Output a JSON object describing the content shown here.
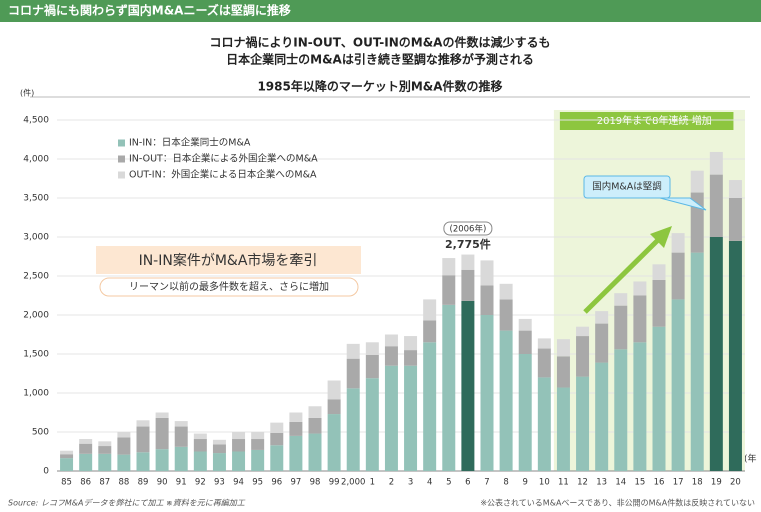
{
  "chart_data": {
    "type": "stacked_bar",
    "header": "コロナ禍にも関わらず国内M&Aニーズは堅調に推移",
    "subtitle": [
      "コロナ禍によりIN-OUT、OUT-INのM&Aの件数は減少するも",
      "日本企業同士のM&Aは引き続き堅調な推移が予測される"
    ],
    "title": "1985年以降のマーケット別M&A件数の推移",
    "y_label": "(件)",
    "x_label": "(年",
    "categories": [
      "85",
      "86",
      "87",
      "88",
      "89",
      "90",
      "91",
      "92",
      "93",
      "94",
      "95",
      "96",
      "97",
      "98",
      "99",
      "2,000",
      "1",
      "2",
      "3",
      "4",
      "5",
      "6",
      "7",
      "8",
      "9",
      "10",
      "11",
      "12",
      "13",
      "14",
      "15",
      "16",
      "17",
      "18",
      "19",
      "20"
    ],
    "series": [
      {
        "name": "IN-IN：日本企業同士のM&A",
        "color": "#93c2b8",
        "colors": [
          "#93c2b8",
          "#93c2b8",
          "#93c2b8",
          "#93c2b8",
          "#93c2b8",
          "#93c2b8",
          "#93c2b8",
          "#93c2b8",
          "#93c2b8",
          "#93c2b8",
          "#93c2b8",
          "#93c2b8",
          "#93c2b8",
          "#93c2b8",
          "#93c2b8",
          "#93c2b8",
          "#93c2b8",
          "#93c2b8",
          "#93c2b8",
          "#93c2b8",
          "#93c2b8",
          "#2f6b5b",
          "#93c2b8",
          "#93c2b8",
          "#93c2b8",
          "#93c2b8",
          "#93c2b8",
          "#93c2b8",
          "#93c2b8",
          "#93c2b8",
          "#93c2b8",
          "#93c2b8",
          "#93c2b8",
          "#93c2b8",
          "#2f6b5b",
          "#2f6b5b"
        ],
        "values": [
          165,
          220,
          220,
          210,
          240,
          280,
          310,
          250,
          230,
          250,
          270,
          330,
          450,
          480,
          730,
          1060,
          1190,
          1350,
          1350,
          1650,
          2130,
          2180,
          2000,
          1800,
          1500,
          1200,
          1070,
          1210,
          1390,
          1560,
          1650,
          1850,
          2200,
          2800,
          3000,
          2950
        ]
      },
      {
        "name": "IN-OUT：日本企業による外国企業へのM&A",
        "color": "#a9a9a9",
        "values": [
          50,
          130,
          100,
          220,
          330,
          400,
          260,
          160,
          110,
          160,
          140,
          160,
          180,
          200,
          190,
          380,
          300,
          250,
          200,
          280,
          380,
          400,
          380,
          400,
          300,
          370,
          400,
          520,
          500,
          560,
          600,
          600,
          600,
          770,
          800,
          550
        ]
      },
      {
        "name": "OUT-IN：外国企業による日本企業へのM&A",
        "color": "#d9d9d9",
        "values": [
          45,
          60,
          60,
          70,
          80,
          70,
          70,
          70,
          60,
          90,
          90,
          130,
          120,
          150,
          240,
          190,
          160,
          150,
          180,
          270,
          220,
          195,
          320,
          200,
          150,
          130,
          220,
          120,
          160,
          160,
          180,
          200,
          250,
          280,
          290,
          230
        ]
      }
    ],
    "ylim": [
      0,
      4500
    ],
    "yticks": [
      0,
      500,
      {
        "value": 1000,
        "label": "1,000"
      },
      {
        "value": 1500,
        "label": "1,500"
      },
      {
        "value": 2000,
        "label": "2,000"
      },
      {
        "value": 2500,
        "label": "2,500"
      },
      {
        "value": 3000,
        "label": "3,000"
      },
      {
        "value": 3500,
        "label": "3,500"
      },
      {
        "value": 4000,
        "label": "4,000"
      },
      {
        "value": 4500,
        "label": "4,500"
      }
    ],
    "annotations": {
      "peak_year": "(2006年)",
      "peak_value": "2,775件",
      "box_title": "IN-IN案件がM&A市場を牽引",
      "box_text": "リーマン以前の最多件数を超え、さらに増加",
      "band_label": "2019年まで8年連続 増加",
      "callout": "国内M&Aは堅調"
    },
    "source": "Source: レコフM&Aデータを弊社にて加工 ※資料を元に再編加工",
    "footnote": "※公表されているM&Aベースであり、非公開のM&A件数は反映されていない"
  }
}
